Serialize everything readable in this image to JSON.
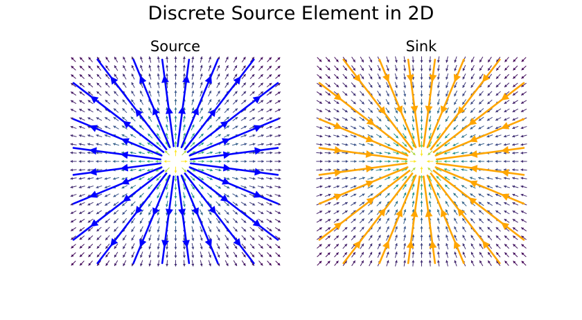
{
  "figure": {
    "title": "Discrete Source Element in 2D"
  },
  "chart_data": [
    {
      "type": "vector-field",
      "title": "Source",
      "kind": "source",
      "strength": 1,
      "source_point": [
        0,
        0
      ],
      "xlim": [
        -1,
        1
      ],
      "ylim": [
        -1,
        1
      ],
      "axes_visible": false,
      "quiver": {
        "grid": [
          25,
          25
        ],
        "colormap": "viridis",
        "direction": "outward"
      },
      "streamlines": {
        "color": "#0000ff",
        "count": 24,
        "direction": "outward"
      }
    },
    {
      "type": "vector-field",
      "title": "Sink",
      "kind": "sink",
      "strength": -1,
      "source_point": [
        0,
        0
      ],
      "xlim": [
        -1,
        1
      ],
      "ylim": [
        -1,
        1
      ],
      "axes_visible": false,
      "quiver": {
        "grid": [
          25,
          25
        ],
        "colormap": "viridis",
        "direction": "inward"
      },
      "streamlines": {
        "color": "#ffa500",
        "count": 24,
        "direction": "inward"
      }
    }
  ]
}
